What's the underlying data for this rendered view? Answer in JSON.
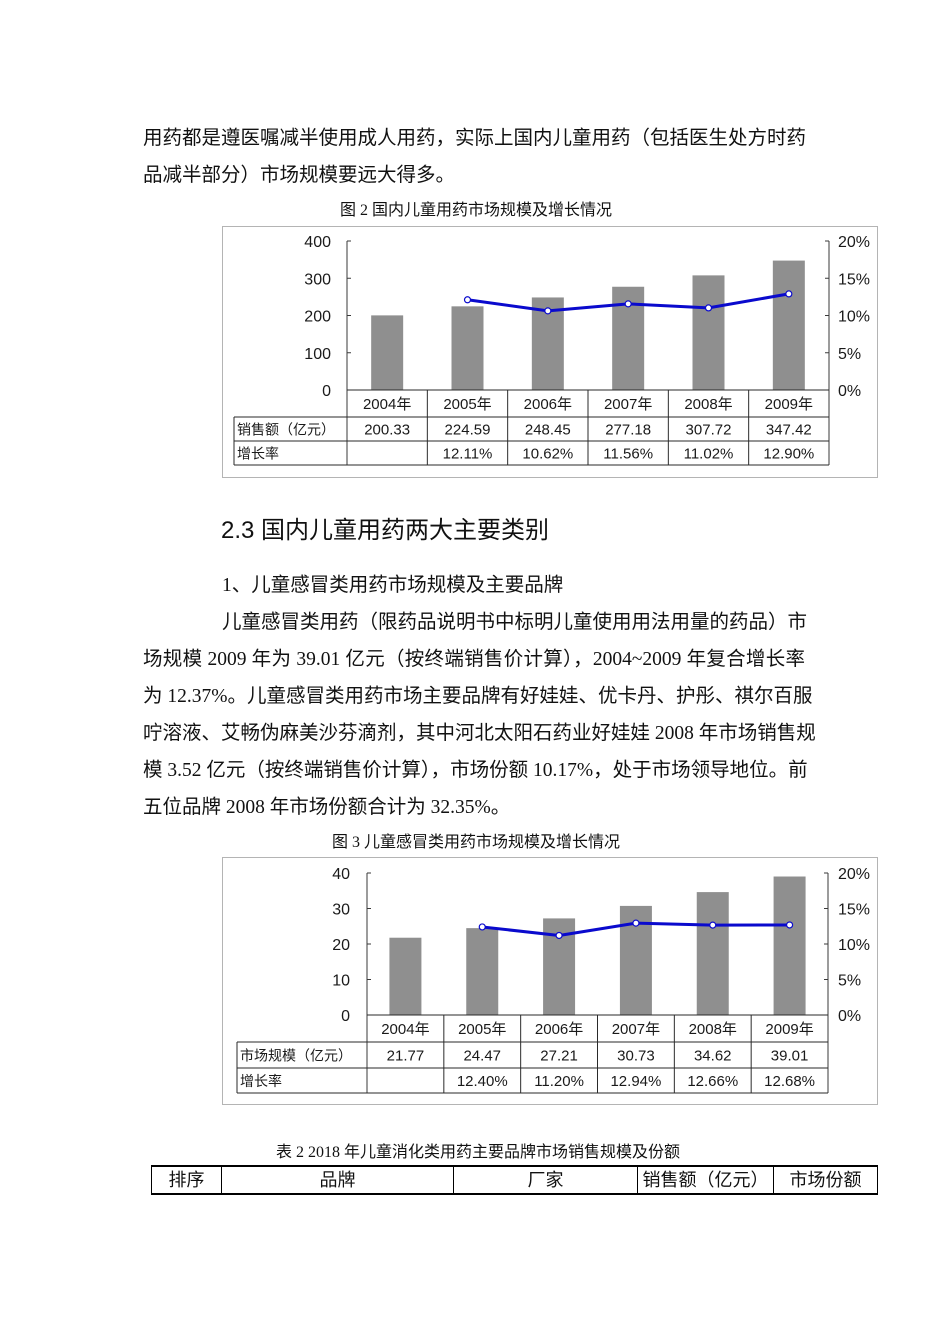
{
  "document": {
    "intro_paragraph": {
      "lines": [
        "用药都是遵医嘱减半使用成人用药，实际上国内儿童用药（包括医生处方时药",
        "品减半部分）市场规模要远大得多。"
      ]
    },
    "section_heading": "2.3 国内儿童用药两大主要类别",
    "subheading": "1、儿童感冒类用药市场规模及主要品牌",
    "cold_medicine_paragraph": {
      "lines": [
        "儿童感冒类用药（限药品说明书中标明儿童使用用法用量的药品）市",
        "场规模 2009 年为 39.01 亿元（按终端销售价计算），2004~2009 年复合增长率",
        "为 12.37%。儿童感冒类用药市场主要品牌有好娃娃、优卡丹、护彤、祺尔百服",
        "咛溶液、艾畅伪麻美沙芬滴剂，其中河北太阳石药业好娃娃 2008 年市场销售规",
        "模 3.52 亿元（按终端销售价计算），市场份额 10.17%，处于市场领导地位。前",
        "五位品牌 2008 年市场份额合计为 32.35%。"
      ]
    },
    "table2": {
      "caption": "表 2 2018 年儿童消化类用药主要品牌市场销售规模及份额",
      "headers": [
        "排序",
        "品牌",
        "厂家",
        "销售额（亿元）",
        "市场份额"
      ]
    }
  },
  "chart_data": [
    {
      "type": "bar+line",
      "title": "图 2 国内儿童用药市场规模及增长情况",
      "categories": [
        "2004年",
        "2005年",
        "2006年",
        "2007年",
        "2008年",
        "2009年"
      ],
      "series": [
        {
          "name": "销售额（亿元）",
          "type": "bar",
          "axis": "left",
          "color": "#8f8f8f",
          "values": [
            200.33,
            224.59,
            248.45,
            277.18,
            307.72,
            347.42
          ],
          "labels": [
            "200.33",
            "224.59",
            "248.45",
            "277.18",
            "307.72",
            "347.42"
          ]
        },
        {
          "name": "增长率",
          "type": "line",
          "axis": "right",
          "color": "#0a0acd",
          "values": [
            null,
            12.11,
            10.62,
            11.56,
            11.02,
            12.9
          ],
          "labels": [
            "",
            "12.11%",
            "10.62%",
            "11.56%",
            "11.02%",
            "12.90%"
          ]
        }
      ],
      "y_left": {
        "range": [
          0,
          400
        ],
        "ticks": [
          "400",
          "300",
          "200",
          "100",
          "0"
        ]
      },
      "y_right": {
        "range": [
          0,
          20
        ],
        "ticks": [
          "20%",
          "15%",
          "10%",
          "5%",
          "0%"
        ]
      },
      "xlabel": "",
      "ylabel": "",
      "grid": false,
      "legend": "data table below plot"
    },
    {
      "type": "bar+line",
      "title": "图 3 儿童感冒类用药市场规模及增长情况",
      "categories": [
        "2004年",
        "2005年",
        "2006年",
        "2007年",
        "2008年",
        "2009年"
      ],
      "series": [
        {
          "name": "市场规模（亿元）",
          "type": "bar",
          "axis": "left",
          "color": "#8f8f8f",
          "values": [
            21.77,
            24.47,
            27.21,
            30.73,
            34.62,
            39.01
          ],
          "labels": [
            "21.77",
            "24.47",
            "27.21",
            "30.73",
            "34.62",
            "39.01"
          ]
        },
        {
          "name": "增长率",
          "type": "line",
          "axis": "right",
          "color": "#0a0acd",
          "values": [
            null,
            12.4,
            11.2,
            12.94,
            12.66,
            12.68
          ],
          "labels": [
            "",
            "12.40%",
            "11.20%",
            "12.94%",
            "12.66%",
            "12.68%"
          ]
        }
      ],
      "y_left": {
        "range": [
          0,
          40
        ],
        "ticks": [
          "40",
          "30",
          "20",
          "10",
          "0"
        ]
      },
      "y_right": {
        "range": [
          0,
          20
        ],
        "ticks": [
          "20%",
          "15%",
          "10%",
          "5%",
          "0%"
        ]
      },
      "xlabel": "",
      "ylabel": "",
      "grid": false,
      "legend": "data table below plot"
    }
  ]
}
